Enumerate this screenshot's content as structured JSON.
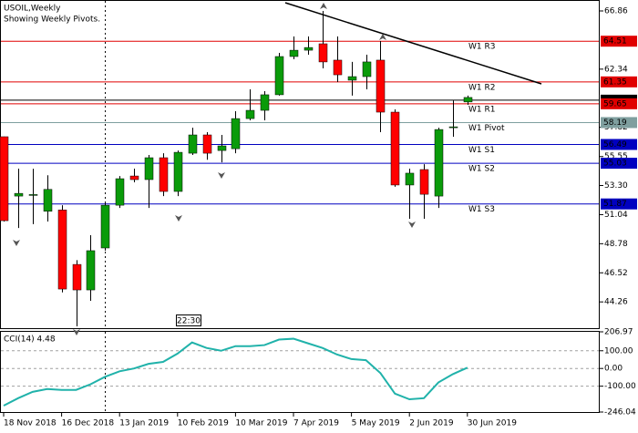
{
  "chart_data": {
    "type": "candlestick",
    "title": "USOIL,Weekly",
    "subtitle": "Showing Weekly Pivots.",
    "timer": "22:30",
    "categories": [
      "18 Nov 2018",
      null,
      null,
      null,
      "16 Dec 2018",
      null,
      null,
      null,
      "13 Jan 2019",
      null,
      null,
      null,
      "10 Feb 2019",
      null,
      null,
      null,
      "10 Mar 2019",
      null,
      null,
      null,
      "7 Apr 2019",
      null,
      null,
      null,
      "5 May 2019",
      null,
      null,
      null,
      "2 Jun 2019",
      null,
      null,
      null,
      "30 Jun 2019"
    ],
    "open": [
      57.09,
      52.48,
      52.55,
      51.3,
      51.4,
      47.17,
      45.19,
      48.45,
      51.77,
      54.04,
      53.76,
      55.46,
      52.84,
      55.81,
      57.23,
      56.02,
      56.16,
      58.5,
      59.14,
      60.35,
      63.32,
      63.81,
      64.31,
      63.04,
      61.48,
      61.76,
      63.04,
      59.0,
      53.34,
      54.54,
      52.48,
      57.79,
      59.79
    ],
    "high": [
      57.1,
      54.61,
      54.6,
      54.1,
      51.77,
      47.5,
      49.44,
      51.98,
      54.04,
      54.61,
      55.67,
      55.81,
      56.02,
      57.79,
      57.44,
      57.23,
      59.07,
      60.77,
      60.63,
      63.6,
      64.88,
      64.88,
      66.86,
      64.88,
      62.9,
      63.46,
      64.52,
      59.21,
      54.61,
      54.96,
      57.79,
      59.9,
      60.28
    ],
    "low": [
      50.5,
      50.0,
      50.3,
      50.5,
      45.0,
      42.36,
      44.34,
      48.24,
      51.56,
      53.55,
      51.56,
      52.48,
      52.48,
      55.67,
      55.3,
      55.1,
      55.81,
      58.36,
      58.36,
      60.28,
      63.11,
      63.46,
      62.4,
      61.34,
      60.28,
      60.77,
      57.44,
      53.2,
      50.72,
      50.72,
      51.56,
      57.09,
      59.57
    ],
    "close": [
      50.57,
      52.69,
      52.6,
      53.0,
      45.26,
      45.19,
      48.24,
      51.77,
      53.83,
      53.76,
      55.46,
      52.84,
      55.88,
      57.23,
      55.81,
      56.38,
      58.5,
      59.14,
      60.35,
      63.32,
      63.81,
      64.02,
      62.9,
      61.9,
      61.76,
      62.9,
      59.0,
      53.34,
      54.26,
      52.62,
      57.65,
      57.86,
      60.14
    ],
    "up_color": "#0a9b0a",
    "down_color": "#ff0000",
    "ylim": [
      42.22,
      67.71
    ],
    "yticks": [
      66.86,
      62.34,
      57.82,
      55.55,
      {
        "value": 53.3,
        "label": "53.30"
      },
      51.04,
      48.78,
      46.52,
      44.26
    ],
    "last_price": 59.93,
    "pivots": [
      {
        "name": "W1 R3",
        "value": 64.51,
        "color": "#e00000"
      },
      {
        "name": "W1 R2",
        "value": 61.35,
        "color": "#e00000"
      },
      {
        "name": "W1 R1",
        "value": 59.65,
        "color": "#e00000"
      },
      {
        "name": "W1 Pivot",
        "value": 58.19,
        "color": "#7f9f9f"
      },
      {
        "name": "W1 S1",
        "value": 56.49,
        "color": "#0000c0"
      },
      {
        "name": "W1 S2",
        "value": 55.03,
        "color": "#0000c0"
      },
      {
        "name": "W1 S3",
        "value": 51.87,
        "color": "#0000c0"
      }
    ],
    "indicator": {
      "type": "line",
      "title": "CCI(14) 4.48",
      "color": "#20b2aa",
      "values": [
        -210,
        -168,
        -132,
        -116,
        -121,
        -121,
        -89,
        -47,
        -16,
        0,
        26,
        37,
        84,
        147,
        116,
        100,
        126,
        126,
        132,
        163,
        168,
        142,
        116,
        79,
        53,
        47,
        -26,
        -142,
        -174,
        -168,
        -79,
        -32,
        4.48
      ],
      "ylim": [
        -246.04,
        206.97
      ],
      "yticks": [
        206.97,
        {
          "value": 100,
          "label": "100.00"
        },
        {
          "value": 0,
          "label": "0.00"
        },
        {
          "value": -100,
          "label": "-100.00"
        },
        -246.04
      ]
    }
  }
}
